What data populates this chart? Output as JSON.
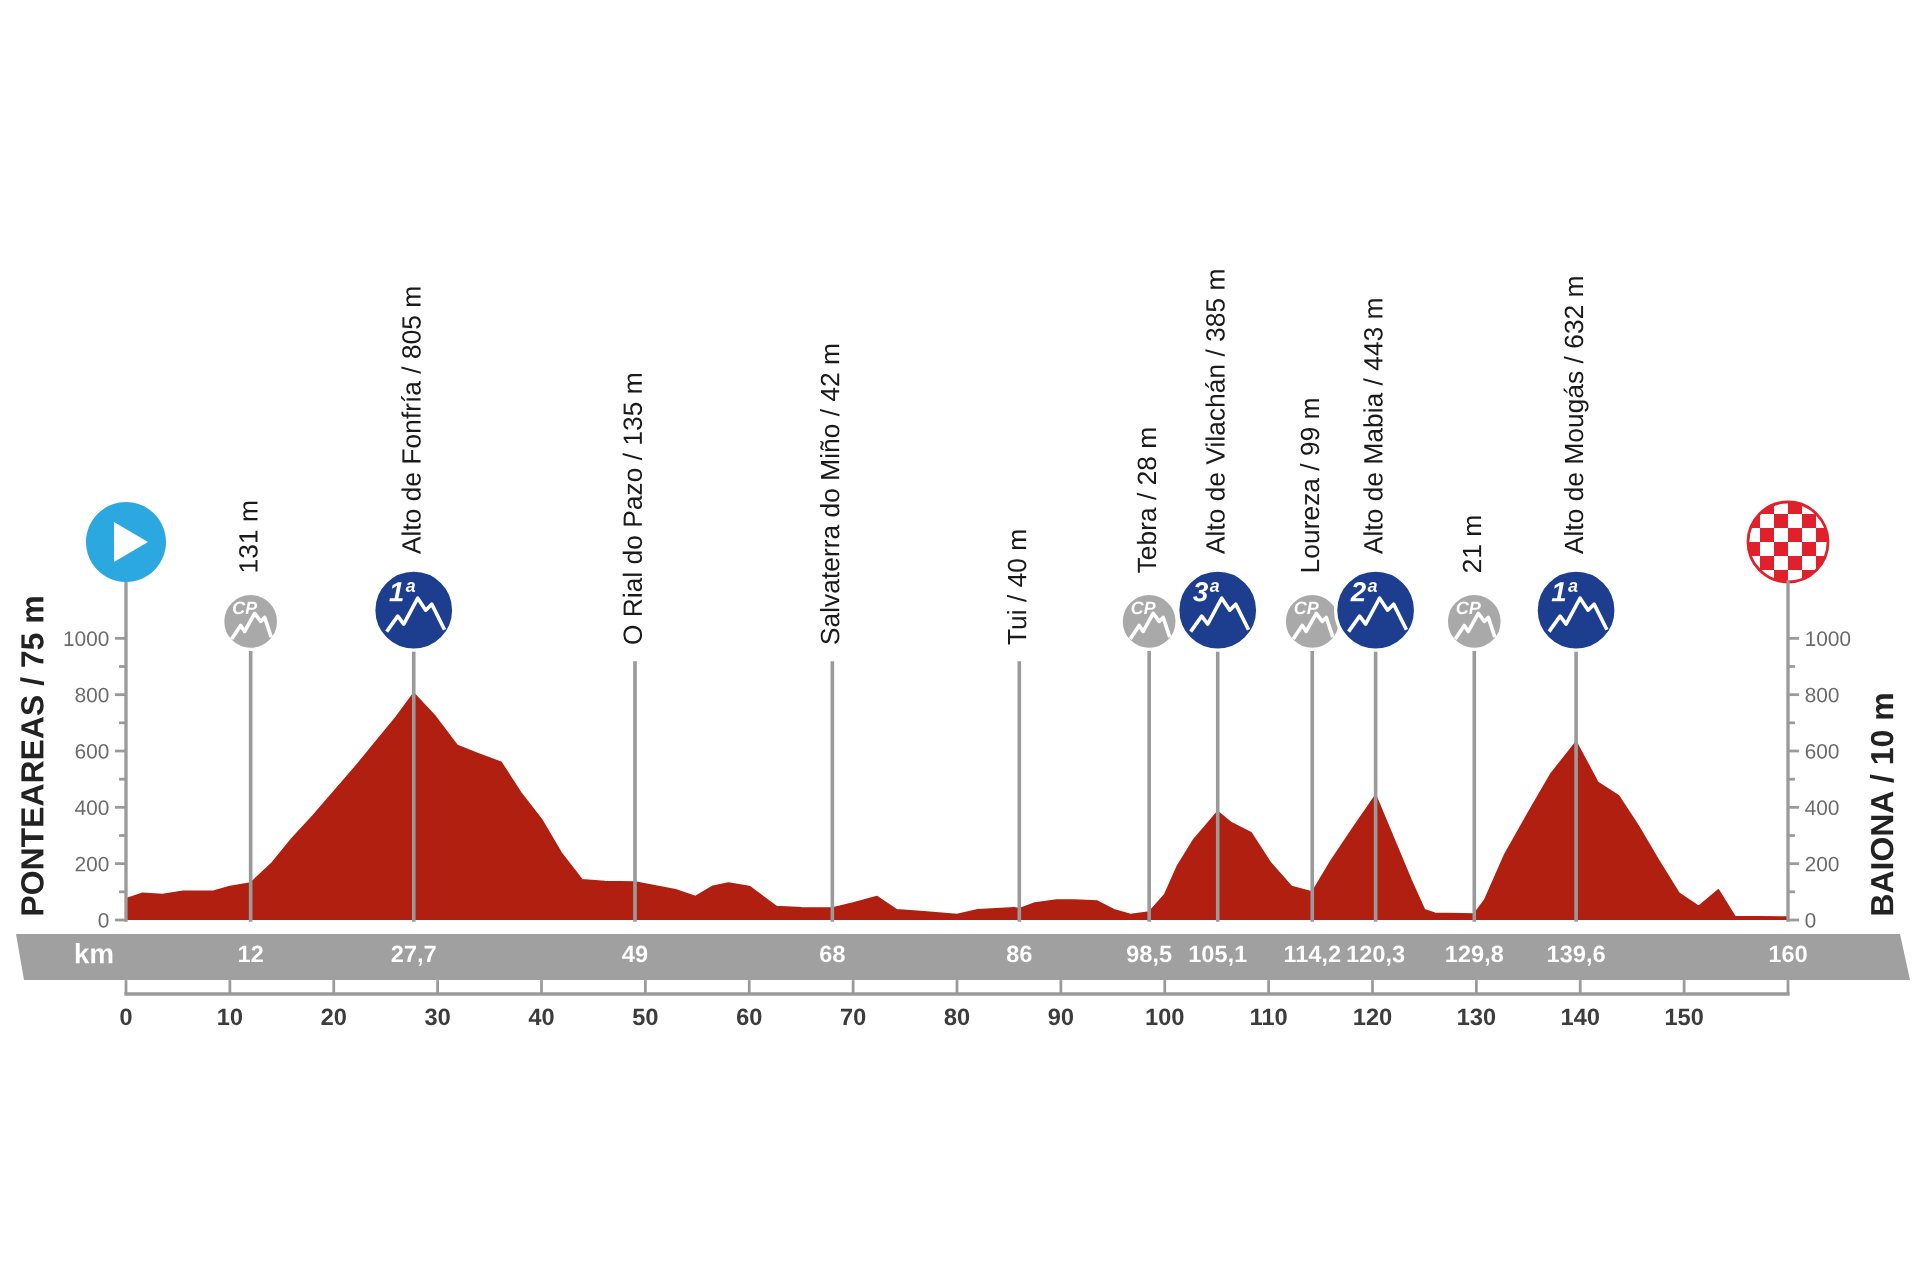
{
  "chart_data": {
    "type": "area",
    "x": [
      0,
      1.6,
      3.5,
      5.5,
      8.4,
      10,
      12,
      14,
      16,
      18,
      20,
      22,
      24,
      26,
      27.7,
      29.7,
      31.9,
      33.9,
      36.1,
      38,
      40,
      41.9,
      43.9,
      46.1,
      49,
      52.9,
      54.8,
      56.5,
      58,
      60,
      62.6,
      65,
      68,
      70,
      72.3,
      74.2,
      76.8,
      80,
      82,
      85.5,
      86,
      87.5,
      89.6,
      91.3,
      93.5,
      95.1,
      96.7,
      98.5,
      100,
      101.2,
      102.8,
      105.1,
      106.4,
      108.3,
      110.2,
      112.2,
      114.2,
      116,
      118,
      120.3,
      121.8,
      123.7,
      125,
      126,
      129.8,
      130.8,
      132.7,
      135.3,
      137.2,
      139.6,
      141.7,
      143.7,
      145.6,
      147.5,
      149.5,
      151.4,
      153.3,
      154.9,
      160
    ],
    "series": [
      {
        "color": "#b01f10",
        "values": [
          75,
          95,
          90,
          102,
          102,
          119,
          131,
          200,
          290,
          370,
          455,
          540,
          630,
          720,
          805,
          726,
          619,
          590,
          560,
          452,
          357,
          238,
          143,
          136,
          135,
          107,
          83,
          120,
          131,
          119,
          48,
          43,
          42,
          60,
          83,
          36,
          29,
          19,
          36,
          43,
          40,
          60,
          71,
          71,
          67,
          36,
          19,
          28,
          90,
          190,
          286,
          385,
          345,
          310,
          202,
          119,
          99,
          210,
          320,
          443,
          310,
          143,
          36,
          24,
          21,
          71,
          230,
          400,
          520,
          632,
          488,
          440,
          333,
          214,
          95,
          48,
          107,
          12,
          10
        ]
      }
    ],
    "xlim": [
      0,
      160
    ],
    "xticks": [
      0,
      10,
      20,
      30,
      40,
      50,
      60,
      70,
      80,
      90,
      100,
      110,
      120,
      130,
      140,
      150,
      {
        "value": 160,
        "label": null
      }
    ],
    "ylim": [
      0,
      1200
    ],
    "yticks": [
      0,
      {
        "value": 100,
        "label": null
      },
      200,
      {
        "value": 300,
        "label": null
      },
      400,
      {
        "value": 500,
        "label": null
      },
      600,
      {
        "value": 700,
        "label": null
      },
      800,
      {
        "value": 900,
        "label": null
      },
      1000
    ],
    "y2lim": [
      0,
      1200
    ],
    "y2ticks": [
      0,
      {
        "value": 100,
        "label": null
      },
      200,
      {
        "value": 300,
        "label": null
      },
      400,
      {
        "value": 500,
        "label": null
      },
      600,
      {
        "value": 700,
        "label": null
      },
      800,
      {
        "value": 900,
        "label": null
      },
      1000
    ],
    "ylabel": "PONTEAREAS / 75 m",
    "y2label": "BAIONA / 10 m",
    "x2lim": [
      0,
      160
    ],
    "x2label": "km",
    "x2ticks": [
      {
        "value": 12,
        "label": "12"
      },
      {
        "value": 27.7,
        "label": "27,7"
      },
      {
        "value": 49,
        "label": "49"
      },
      {
        "value": 68,
        "label": "68"
      },
      {
        "value": 86,
        "label": "86"
      },
      {
        "value": 98.5,
        "label": "98,5"
      },
      {
        "value": 105.1,
        "label": "105,1"
      },
      {
        "value": 114.2,
        "label": "114,2"
      },
      {
        "value": 120.3,
        "label": "120,3"
      },
      {
        "value": 129.8,
        "label": "129,8"
      },
      {
        "value": 139.6,
        "label": "139,6"
      },
      {
        "value": 160,
        "label": "160"
      }
    ],
    "ref_lines": [
      {
        "axis": "x",
        "value": 12,
        "label": "131 m"
      },
      {
        "axis": "x",
        "value": 27.7,
        "label": "Alto de Fonfría / 805 m"
      },
      {
        "axis": "x",
        "value": 49,
        "label": "O Rial do Pazo / 135 m"
      },
      {
        "axis": "x",
        "value": 68,
        "label": "Salvaterra do Miño / 42 m"
      },
      {
        "axis": "x",
        "value": 86,
        "label": "Tui / 40 m"
      },
      {
        "axis": "x",
        "value": 98.5,
        "label": "Tebra / 28 m"
      },
      {
        "axis": "x",
        "value": 105.1,
        "label": "Alto de Vilachán / 385 m"
      },
      {
        "axis": "x",
        "value": 114.2,
        "label": "Loureza / 99 m"
      },
      {
        "axis": "x",
        "value": 120.3,
        "label": "Alto de Mabia / 443 m"
      },
      {
        "axis": "x",
        "value": 129.8,
        "label": "21 m"
      },
      {
        "axis": "x",
        "value": 139.6,
        "label": "Alto de Mougás / 632 m"
      }
    ],
    "annotations": [
      {
        "text": "CP",
        "x": 12,
        "y": 1060
      },
      {
        "text": "1ª",
        "x": 27.7,
        "y": 1100
      },
      {
        "text": "CP",
        "x": 98.5,
        "y": 1060
      },
      {
        "text": "3ª",
        "x": 105.1,
        "y": 1100
      },
      {
        "text": "CP",
        "x": 114.2,
        "y": 1060
      },
      {
        "text": "2ª",
        "x": 120.3,
        "y": 1100
      },
      {
        "text": "CP",
        "x": 129.8,
        "y": 1060
      },
      {
        "text": "1ª",
        "x": 139.6,
        "y": 1100
      }
    ]
  }
}
